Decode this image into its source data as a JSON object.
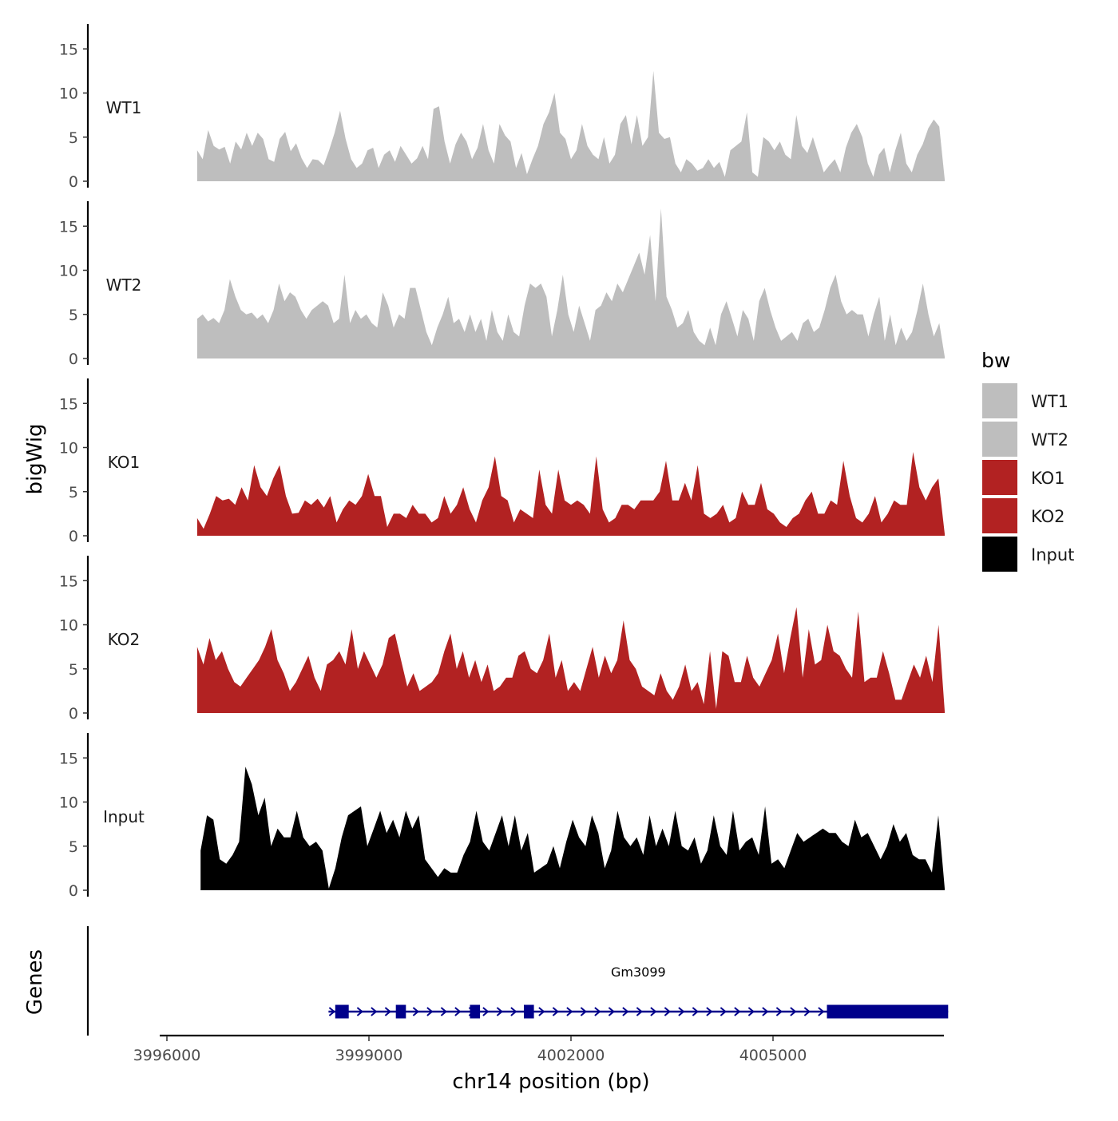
{
  "chart_data": {
    "type": "area",
    "chromosome": "chr14",
    "xlabel": "chr14 position (bp)",
    "ylabel": "bigWig",
    "gene_track_label": "Genes",
    "xlim": [
      3996000,
      4007700
    ],
    "x_ticks": [
      3996000,
      3999000,
      4002000,
      4005000
    ],
    "x_tick_labels": [
      "3996000",
      "3999000",
      "4002000",
      "4005000"
    ],
    "ylim": [
      0,
      18
    ],
    "y_ticks": [
      0,
      5,
      10,
      15
    ],
    "y_tick_labels": [
      "0",
      "5",
      "10",
      "15"
    ],
    "grid": false,
    "legend": {
      "title": "bw",
      "position": "right",
      "entries": [
        {
          "label": "WT1",
          "color": "#BEBEBE"
        },
        {
          "label": "WT2",
          "color": "#BEBEBE"
        },
        {
          "label": "KO1",
          "color": "#B22222"
        },
        {
          "label": "KO2",
          "color": "#B22222"
        },
        {
          "label": "Input",
          "color": "#000000"
        }
      ]
    },
    "series": [
      {
        "name": "WT1",
        "color": "#BEBEBE",
        "x_start": 3996450,
        "x_end": 4007550,
        "values": [
          3.5,
          2.5,
          5.8,
          4.0,
          3.6,
          3.9,
          2.0,
          4.5,
          3.6,
          5.5,
          4.0,
          5.5,
          4.8,
          2.5,
          2.2,
          4.8,
          5.6,
          3.4,
          4.3,
          2.6,
          1.5,
          2.5,
          2.4,
          1.8,
          3.5,
          5.5,
          8.0,
          4.8,
          2.5,
          1.5,
          2.0,
          3.5,
          3.8,
          1.5,
          3.0,
          3.5,
          2.2,
          4.0,
          3.0,
          2.0,
          2.6,
          4.0,
          2.5,
          8.2,
          8.5,
          4.5,
          2.0,
          4.2,
          5.5,
          4.5,
          2.5,
          3.8,
          6.5,
          3.5,
          2.0,
          6.5,
          5.2,
          4.5,
          1.5,
          3.2,
          0.8,
          2.5,
          4.0,
          6.5,
          7.8,
          10.0,
          5.5,
          4.8,
          2.5,
          3.5,
          6.5,
          4.0,
          3.0,
          2.5,
          5.0,
          2.0,
          3.0,
          6.5,
          7.5,
          4.2,
          7.5,
          4.0,
          5.0,
          12.5,
          5.5,
          4.8,
          5.0,
          2.0,
          1.0,
          2.5,
          2.0,
          1.2,
          1.5,
          2.5,
          1.5,
          2.2,
          0.5,
          3.5,
          4.0,
          4.5,
          7.8,
          1.0,
          0.5,
          5.0,
          4.5,
          3.5,
          4.5,
          3.0,
          2.5,
          7.5,
          4.0,
          3.2,
          5.0,
          3.0,
          1.0,
          1.8,
          2.5,
          1.0,
          3.8,
          5.5,
          6.5,
          5.0,
          2.0,
          0.5,
          3.0,
          3.8,
          1.0,
          3.5,
          5.5,
          2.0,
          1.0,
          3.0,
          4.2,
          6.0,
          7.0,
          6.2,
          0.2
        ]
      },
      {
        "name": "WT2",
        "color": "#BEBEBE",
        "x_start": 3996450,
        "x_end": 4007550,
        "values": [
          4.5,
          5.0,
          4.2,
          4.6,
          4.0,
          5.5,
          9.0,
          7.0,
          5.5,
          5.0,
          5.2,
          4.5,
          5.0,
          4.0,
          5.5,
          8.5,
          6.5,
          7.5,
          7.0,
          5.5,
          4.5,
          5.5,
          6.0,
          6.5,
          6.0,
          4.0,
          4.5,
          9.5,
          4.0,
          5.5,
          4.5,
          5.0,
          4.0,
          3.5,
          7.5,
          6.0,
          3.5,
          5.0,
          4.5,
          8.0,
          8.0,
          5.5,
          3.0,
          1.5,
          3.5,
          5.0,
          7.0,
          4.0,
          4.5,
          3.0,
          5.0,
          3.0,
          4.5,
          2.0,
          5.5,
          3.0,
          2.0,
          5.0,
          3.0,
          2.5,
          6.0,
          8.5,
          8.0,
          8.5,
          7.0,
          2.5,
          5.5,
          9.5,
          5.0,
          3.0,
          6.0,
          4.0,
          2.0,
          5.5,
          6.0,
          7.5,
          6.5,
          8.5,
          7.5,
          9.0,
          10.5,
          12.0,
          9.5,
          14.0,
          6.5,
          17.0,
          7.0,
          5.5,
          3.5,
          4.0,
          5.5,
          3.0,
          2.0,
          1.5,
          3.5,
          1.5,
          5.0,
          6.5,
          4.5,
          2.5,
          5.5,
          4.5,
          2.0,
          6.5,
          8.0,
          5.5,
          3.5,
          2.0,
          2.5,
          3.0,
          2.0,
          4.0,
          4.5,
          3.0,
          3.5,
          5.5,
          8.0,
          9.5,
          6.5,
          5.0,
          5.5,
          5.0,
          5.0,
          2.5,
          5.0,
          7.0,
          2.0,
          5.0,
          1.5,
          3.5,
          2.0,
          3.0,
          5.5,
          8.5,
          5.0,
          2.5,
          4.0,
          0.2
        ]
      },
      {
        "name": "KO1",
        "color": "#B22222",
        "x_start": 3996450,
        "x_end": 4007550,
        "values": [
          2.0,
          0.8,
          2.5,
          4.5,
          4.0,
          4.2,
          3.5,
          5.5,
          4.0,
          8.0,
          5.5,
          4.5,
          6.5,
          8.0,
          4.5,
          2.5,
          2.6,
          4.0,
          3.5,
          4.2,
          3.2,
          4.5,
          1.5,
          3.0,
          4.0,
          3.5,
          4.5,
          7.0,
          4.5,
          4.5,
          1.0,
          2.5,
          2.5,
          2.0,
          3.5,
          2.5,
          2.5,
          1.5,
          2.0,
          4.5,
          2.5,
          3.5,
          5.5,
          3.0,
          1.5,
          4.0,
          5.5,
          9.0,
          4.5,
          4.0,
          1.5,
          3.0,
          2.5,
          2.0,
          7.5,
          3.5,
          2.5,
          7.5,
          4.0,
          3.5,
          4.0,
          3.5,
          2.5,
          9.0,
          3.0,
          1.5,
          2.0,
          3.5,
          3.5,
          3.0,
          4.0,
          4.0,
          4.0,
          5.0,
          8.5,
          4.0,
          4.0,
          6.0,
          4.0,
          8.0,
          2.5,
          2.0,
          2.5,
          3.5,
          1.5,
          2.0,
          5.0,
          3.5,
          3.5,
          6.0,
          3.0,
          2.5,
          1.5,
          1.0,
          2.0,
          2.5,
          4.0,
          5.0,
          2.5,
          2.5,
          4.0,
          3.5,
          8.5,
          4.5,
          2.0,
          1.5,
          2.5,
          4.5,
          1.5,
          2.5,
          4.0,
          3.5,
          3.5,
          9.5,
          5.5,
          4.0,
          5.5,
          6.5,
          0.2
        ]
      },
      {
        "name": "KO2",
        "color": "#B22222",
        "x_start": 3996450,
        "x_end": 4007550,
        "values": [
          7.5,
          5.5,
          8.5,
          6.0,
          7.0,
          5.0,
          3.5,
          3.0,
          4.0,
          5.0,
          6.0,
          7.5,
          9.5,
          6.0,
          4.5,
          2.5,
          3.5,
          5.0,
          6.5,
          4.0,
          2.5,
          5.5,
          6.0,
          7.0,
          5.5,
          9.5,
          5.0,
          7.0,
          5.5,
          4.0,
          5.5,
          8.5,
          9.0,
          6.0,
          3.0,
          4.5,
          2.5,
          3.0,
          3.5,
          4.5,
          7.0,
          9.0,
          5.0,
          7.0,
          4.0,
          6.0,
          3.5,
          5.5,
          2.5,
          3.0,
          4.0,
          4.0,
          6.5,
          7.0,
          5.0,
          4.5,
          6.0,
          9.0,
          4.0,
          6.0,
          2.5,
          3.5,
          2.5,
          5.0,
          7.5,
          4.0,
          6.5,
          4.5,
          6.0,
          10.5,
          6.0,
          5.0,
          3.0,
          2.5,
          2.0,
          4.5,
          2.5,
          1.5,
          3.0,
          5.5,
          2.5,
          3.5,
          1.0,
          7.0,
          0.5,
          7.0,
          6.5,
          3.5,
          3.5,
          6.5,
          4.0,
          3.0,
          4.5,
          6.0,
          9.0,
          4.5,
          8.5,
          12.0,
          4.0,
          9.5,
          5.5,
          6.0,
          10.0,
          7.0,
          6.5,
          5.0,
          4.0,
          11.5,
          3.5,
          4.0,
          4.0,
          7.0,
          4.5,
          1.5,
          1.5,
          3.5,
          5.5,
          4.0,
          6.5,
          3.5,
          10.0,
          0.2
        ]
      },
      {
        "name": "Input",
        "color": "#000000",
        "x_start": 3996500,
        "x_end": 4007550,
        "values": [
          4.5,
          8.5,
          8.0,
          3.5,
          3.0,
          4.0,
          5.5,
          14.0,
          12.0,
          8.5,
          10.5,
          5.0,
          7.0,
          6.0,
          6.0,
          9.0,
          6.0,
          5.0,
          5.5,
          4.5,
          0.2,
          2.5,
          6.0,
          8.5,
          9.0,
          9.5,
          5.0,
          7.0,
          9.0,
          6.5,
          8.0,
          6.0,
          9.0,
          7.0,
          8.5,
          3.5,
          2.5,
          1.5,
          2.5,
          2.0,
          2.0,
          4.0,
          5.5,
          9.0,
          5.5,
          4.5,
          6.5,
          8.5,
          5.0,
          8.5,
          4.5,
          6.5,
          2.0,
          2.5,
          3.0,
          5.0,
          2.5,
          5.5,
          8.0,
          6.0,
          5.0,
          8.5,
          6.5,
          2.5,
          4.5,
          9.0,
          6.0,
          5.0,
          6.0,
          4.0,
          8.5,
          5.0,
          7.0,
          5.0,
          9.0,
          5.0,
          4.5,
          6.0,
          3.0,
          4.5,
          8.5,
          5.0,
          4.0,
          9.0,
          4.5,
          5.5,
          6.0,
          4.0,
          9.5,
          3.0,
          3.5,
          2.5,
          4.5,
          6.5,
          5.5,
          6.0,
          6.5,
          7.0,
          6.5,
          6.5,
          5.5,
          5.0,
          8.0,
          6.0,
          6.5,
          5.0,
          3.5,
          5.0,
          7.5,
          5.5,
          6.5,
          4.0,
          3.5,
          3.5,
          2.0,
          8.5,
          0.2
        ]
      }
    ],
    "gene": {
      "name": "Gm3099",
      "strand": "+",
      "color": "#00008B",
      "start": 3998400,
      "end": 4007600,
      "exons": [
        [
          3998500,
          3998700
        ],
        [
          3999400,
          3999550
        ],
        [
          4000500,
          4000650
        ],
        [
          4001300,
          4001450
        ],
        [
          4005800,
          4007600
        ]
      ]
    }
  }
}
